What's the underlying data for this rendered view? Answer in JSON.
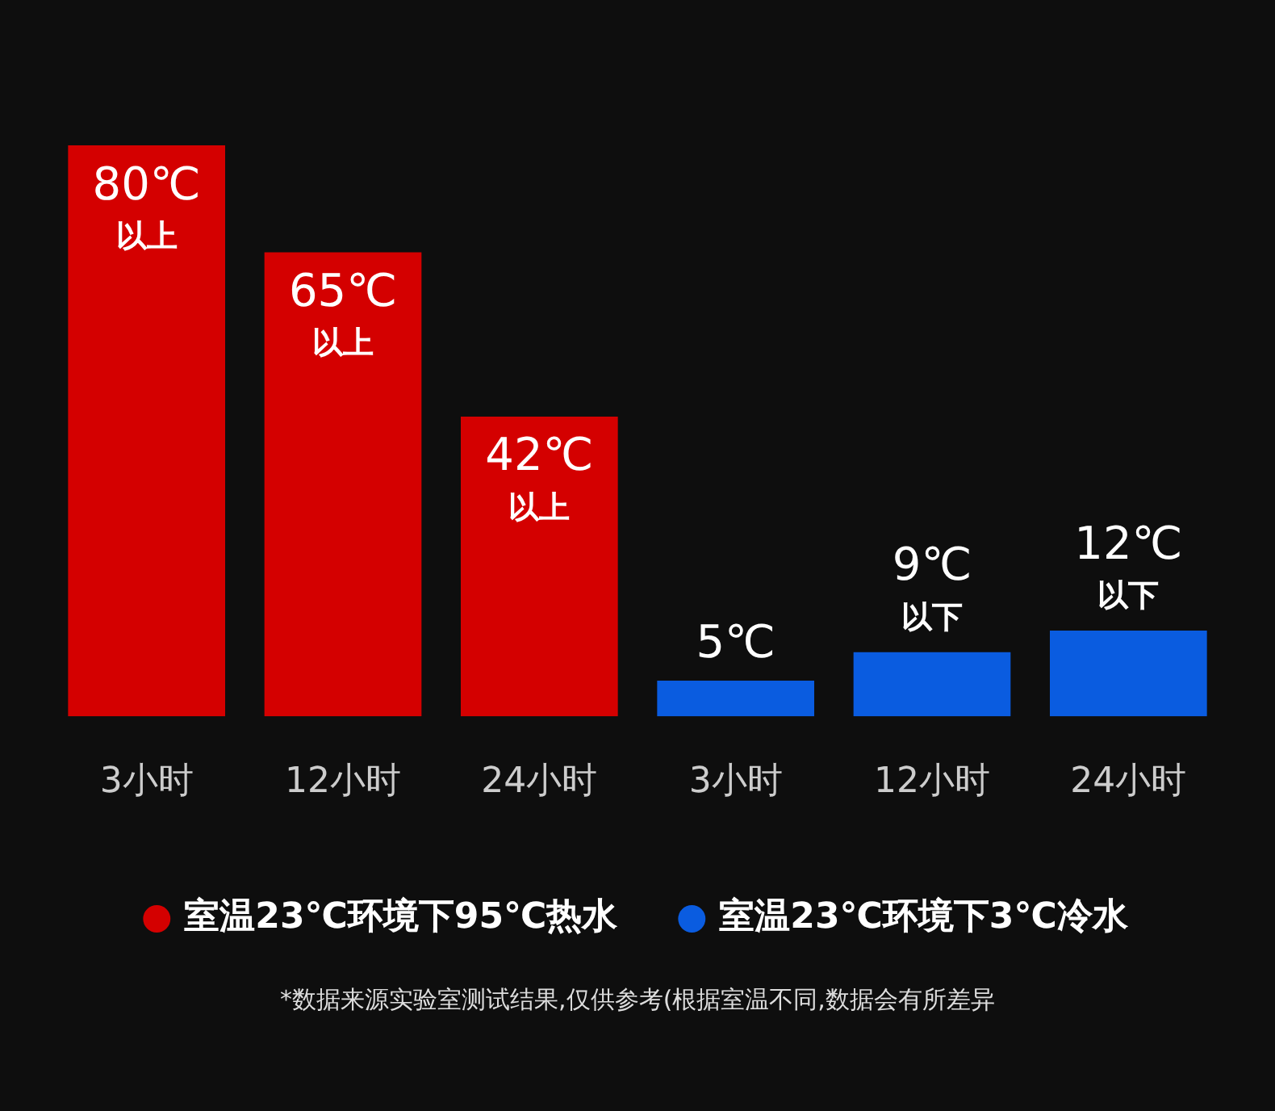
{
  "chart_data": {
    "type": "bar",
    "categories": [
      "3小时",
      "12小时",
      "24小时",
      "3小时",
      "12小时",
      "24小时"
    ],
    "ylim": [
      0,
      80
    ],
    "series": [
      {
        "name": "室温23℃环境下95℃热水",
        "color": "#d40000",
        "values": [
          80,
          65,
          42,
          null,
          null,
          null
        ],
        "value_labels": [
          "80℃\n以上",
          "65℃\n以上",
          "42℃\n以上",
          null,
          null,
          null
        ]
      },
      {
        "name": "室温23℃环境下3℃冷水",
        "color": "#0a5ce0",
        "values": [
          null,
          null,
          null,
          5,
          9,
          12
        ],
        "value_labels": [
          null,
          null,
          null,
          "5℃",
          "9℃\n以下",
          "12℃\n以下"
        ]
      }
    ],
    "legend": "bottom",
    "annotations": [
      "*数据来源实验室测试结果,仅供参考(根据室温不同,数据会有所差异"
    ]
  }
}
